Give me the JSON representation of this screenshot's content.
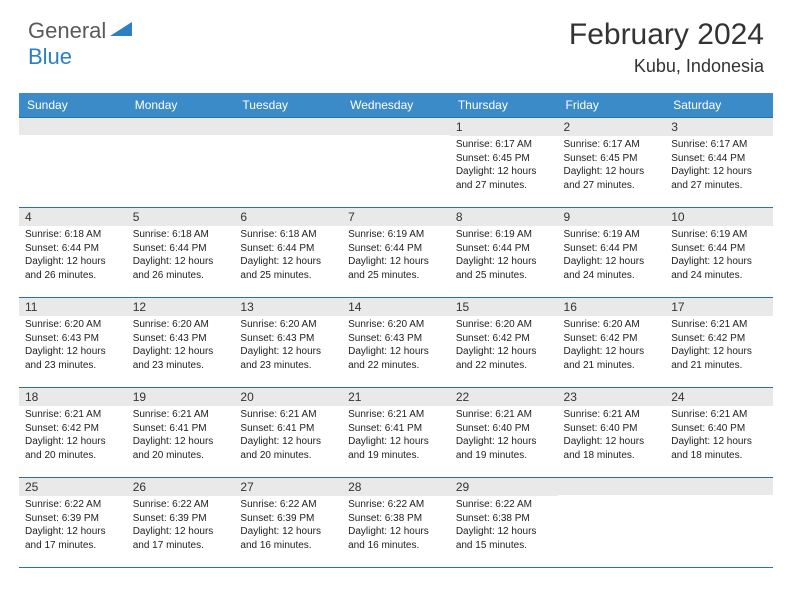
{
  "logo": {
    "general": "General",
    "blue": "Blue"
  },
  "title": "February 2024",
  "location": "Kubu, Indonesia",
  "colors": {
    "header_bg": "#3b8bc9",
    "header_text": "#ffffff",
    "daynum_bg": "#e9e9e9",
    "border": "#2d6fa8",
    "body_text": "#222222",
    "logo_gray": "#5a5a5a",
    "logo_blue": "#2d7fc4"
  },
  "day_headers": [
    "Sunday",
    "Monday",
    "Tuesday",
    "Wednesday",
    "Thursday",
    "Friday",
    "Saturday"
  ],
  "weeks": [
    [
      null,
      null,
      null,
      null,
      {
        "n": "1",
        "sr": "6:17 AM",
        "ss": "6:45 PM",
        "dl": "12 hours and 27 minutes."
      },
      {
        "n": "2",
        "sr": "6:17 AM",
        "ss": "6:45 PM",
        "dl": "12 hours and 27 minutes."
      },
      {
        "n": "3",
        "sr": "6:17 AM",
        "ss": "6:44 PM",
        "dl": "12 hours and 27 minutes."
      }
    ],
    [
      {
        "n": "4",
        "sr": "6:18 AM",
        "ss": "6:44 PM",
        "dl": "12 hours and 26 minutes."
      },
      {
        "n": "5",
        "sr": "6:18 AM",
        "ss": "6:44 PM",
        "dl": "12 hours and 26 minutes."
      },
      {
        "n": "6",
        "sr": "6:18 AM",
        "ss": "6:44 PM",
        "dl": "12 hours and 25 minutes."
      },
      {
        "n": "7",
        "sr": "6:19 AM",
        "ss": "6:44 PM",
        "dl": "12 hours and 25 minutes."
      },
      {
        "n": "8",
        "sr": "6:19 AM",
        "ss": "6:44 PM",
        "dl": "12 hours and 25 minutes."
      },
      {
        "n": "9",
        "sr": "6:19 AM",
        "ss": "6:44 PM",
        "dl": "12 hours and 24 minutes."
      },
      {
        "n": "10",
        "sr": "6:19 AM",
        "ss": "6:44 PM",
        "dl": "12 hours and 24 minutes."
      }
    ],
    [
      {
        "n": "11",
        "sr": "6:20 AM",
        "ss": "6:43 PM",
        "dl": "12 hours and 23 minutes."
      },
      {
        "n": "12",
        "sr": "6:20 AM",
        "ss": "6:43 PM",
        "dl": "12 hours and 23 minutes."
      },
      {
        "n": "13",
        "sr": "6:20 AM",
        "ss": "6:43 PM",
        "dl": "12 hours and 23 minutes."
      },
      {
        "n": "14",
        "sr": "6:20 AM",
        "ss": "6:43 PM",
        "dl": "12 hours and 22 minutes."
      },
      {
        "n": "15",
        "sr": "6:20 AM",
        "ss": "6:42 PM",
        "dl": "12 hours and 22 minutes."
      },
      {
        "n": "16",
        "sr": "6:20 AM",
        "ss": "6:42 PM",
        "dl": "12 hours and 21 minutes."
      },
      {
        "n": "17",
        "sr": "6:21 AM",
        "ss": "6:42 PM",
        "dl": "12 hours and 21 minutes."
      }
    ],
    [
      {
        "n": "18",
        "sr": "6:21 AM",
        "ss": "6:42 PM",
        "dl": "12 hours and 20 minutes."
      },
      {
        "n": "19",
        "sr": "6:21 AM",
        "ss": "6:41 PM",
        "dl": "12 hours and 20 minutes."
      },
      {
        "n": "20",
        "sr": "6:21 AM",
        "ss": "6:41 PM",
        "dl": "12 hours and 20 minutes."
      },
      {
        "n": "21",
        "sr": "6:21 AM",
        "ss": "6:41 PM",
        "dl": "12 hours and 19 minutes."
      },
      {
        "n": "22",
        "sr": "6:21 AM",
        "ss": "6:40 PM",
        "dl": "12 hours and 19 minutes."
      },
      {
        "n": "23",
        "sr": "6:21 AM",
        "ss": "6:40 PM",
        "dl": "12 hours and 18 minutes."
      },
      {
        "n": "24",
        "sr": "6:21 AM",
        "ss": "6:40 PM",
        "dl": "12 hours and 18 minutes."
      }
    ],
    [
      {
        "n": "25",
        "sr": "6:22 AM",
        "ss": "6:39 PM",
        "dl": "12 hours and 17 minutes."
      },
      {
        "n": "26",
        "sr": "6:22 AM",
        "ss": "6:39 PM",
        "dl": "12 hours and 17 minutes."
      },
      {
        "n": "27",
        "sr": "6:22 AM",
        "ss": "6:39 PM",
        "dl": "12 hours and 16 minutes."
      },
      {
        "n": "28",
        "sr": "6:22 AM",
        "ss": "6:38 PM",
        "dl": "12 hours and 16 minutes."
      },
      {
        "n": "29",
        "sr": "6:22 AM",
        "ss": "6:38 PM",
        "dl": "12 hours and 15 minutes."
      },
      null,
      null
    ]
  ],
  "labels": {
    "sunrise": "Sunrise:",
    "sunset": "Sunset:",
    "daylight": "Daylight:"
  }
}
